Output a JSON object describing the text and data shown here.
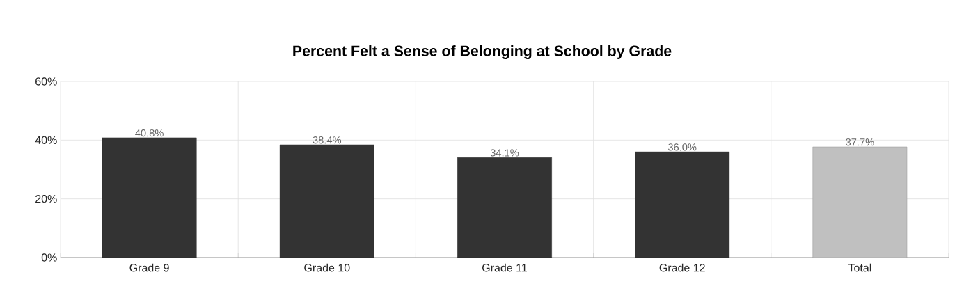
{
  "chart_data": {
    "type": "bar",
    "title": "Percent Felt a Sense of Belonging at School by Grade",
    "categories": [
      "Grade 9",
      "Grade 10",
      "Grade 11",
      "Grade 12",
      "Total"
    ],
    "values": [
      40.8,
      38.4,
      34.1,
      36.0,
      37.7
    ],
    "colors": [
      "#333333",
      "#333333",
      "#333333",
      "#333333",
      "#c0c0c0"
    ],
    "value_labels": [
      "40.8%",
      "38.4%",
      "34.1%",
      "36.0%",
      "37.7%"
    ],
    "ylim": [
      0,
      60
    ],
    "yticks": [
      {
        "value": 0,
        "label": "0%"
      },
      {
        "value": 20,
        "label": "20%"
      },
      {
        "value": 40,
        "label": "40%"
      },
      {
        "value": 60,
        "label": "60%"
      }
    ],
    "grid": true
  }
}
